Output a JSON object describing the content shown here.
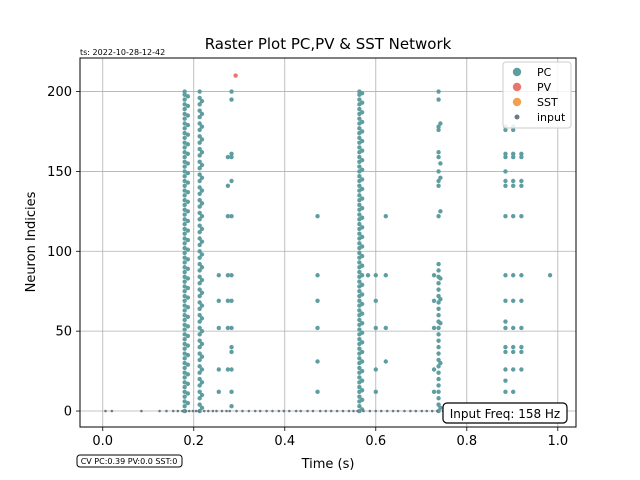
{
  "timestamp": "ts: 2022-10-28-12-42",
  "cv_text": "CV PC:0.39 PV:0.0 SST:0",
  "freq_text": "Input Freq: 158 Hz",
  "chart_data": {
    "type": "scatter",
    "title": "Raster Plot PC,PV & SST Network",
    "xlabel": "Time (s)",
    "ylabel": "Neuron Indicies",
    "xlim": [
      -0.05,
      1.04
    ],
    "ylim": [
      -10,
      221
    ],
    "xticks": [
      0.0,
      0.2,
      0.4,
      0.6,
      0.8,
      1.0
    ],
    "xtick_labels": [
      "0.0",
      "0.2",
      "0.4",
      "0.6",
      "0.8",
      "1.0"
    ],
    "yticks": [
      0,
      50,
      100,
      150,
      200
    ],
    "ytick_labels": [
      "0",
      "50",
      "100",
      "150",
      "200"
    ],
    "grid": true,
    "legend_position": "top-right",
    "series": [
      {
        "name": "PC",
        "color": "#5f9ea0",
        "marker_size": "medium",
        "columns": [
          {
            "x": 0.18,
            "y": [
              0,
              3,
              6,
              9,
              12,
              15,
              18,
              21,
              24,
              27,
              30,
              33,
              36,
              39,
              42,
              45,
              48,
              51,
              54,
              57,
              60,
              63,
              66,
              69,
              72,
              75,
              78,
              81,
              84,
              87,
              90,
              93,
              96,
              99,
              102,
              105,
              108,
              111,
              114,
              117,
              120,
              123,
              126,
              129,
              132,
              135,
              138,
              141,
              144,
              147,
              150,
              153,
              156,
              159,
              162,
              165,
              168,
              171,
              174,
              177,
              180,
              183,
              186,
              189,
              192,
              195,
              198,
              200
            ]
          },
          {
            "x": 0.187,
            "y": [
              5,
              11,
              17,
              23,
              29,
              35,
              41,
              47,
              53,
              59,
              65,
              71,
              77,
              83,
              89,
              95,
              101,
              107,
              113,
              119,
              125,
              131,
              137,
              143,
              149,
              155,
              161,
              167,
              173,
              179,
              185,
              191,
              197
            ]
          },
          {
            "x": 0.213,
            "y": [
              0,
              4,
              8,
              12,
              16,
              20,
              24,
              28,
              32,
              36,
              40,
              44,
              48,
              52,
              56,
              60,
              64,
              68,
              72,
              76,
              80,
              84,
              88,
              92,
              96,
              100,
              104,
              108,
              112,
              116,
              120,
              124,
              128,
              132,
              136,
              140,
              144,
              148,
              152,
              156,
              160,
              164,
              168,
              172,
              176,
              180,
              184,
              188,
              192,
              196,
              200
            ]
          },
          {
            "x": 0.218,
            "y": [
              2,
              10,
              18,
              26,
              34,
              42,
              50,
              58,
              66,
              74,
              82,
              90,
              98,
              106,
              114,
              122,
              130,
              138,
              146,
              154,
              162,
              170,
              178,
              186,
              194
            ]
          },
          {
            "x": 0.255,
            "y": [
              12,
              26,
              52,
              69,
              85
            ]
          },
          {
            "x": 0.275,
            "y": [
              26,
              52,
              69,
              85,
              122,
              141,
              159
            ]
          },
          {
            "x": 0.283,
            "y": [
              3,
              12,
              26,
              37,
              40,
              52,
              69,
              85,
              122,
              144,
              159,
              161,
              195,
              200
            ]
          },
          {
            "x": 0.472,
            "y": [
              12,
              31,
              52,
              69,
              85,
              122
            ]
          },
          {
            "x": 0.564,
            "y": [
              0,
              3,
              6,
              9,
              12,
              15,
              18,
              21,
              24,
              27,
              30,
              33,
              36,
              39,
              42,
              45,
              48,
              51,
              54,
              57,
              60,
              63,
              66,
              69,
              72,
              75,
              78,
              81,
              84,
              87,
              90,
              93,
              96,
              99,
              102,
              105,
              108,
              111,
              114,
              117,
              120,
              123,
              126,
              129,
              132,
              135,
              138,
              141,
              144,
              147,
              150,
              153,
              156,
              159,
              162,
              165,
              168,
              171,
              174,
              177,
              180,
              183,
              186,
              189,
              192,
              195,
              198,
              200
            ]
          },
          {
            "x": 0.57,
            "y": [
              1,
              7,
              13,
              19,
              25,
              31,
              37,
              43,
              49,
              55,
              61,
              67,
              73,
              79,
              85,
              91,
              97,
              103,
              109,
              115,
              121,
              127,
              133,
              139,
              145,
              151,
              157,
              163,
              169,
              175,
              181,
              187,
              193,
              199
            ]
          },
          {
            "x": 0.583,
            "y": [
              85
            ]
          },
          {
            "x": 0.6,
            "y": [
              12,
              26,
              52,
              69,
              85
            ]
          },
          {
            "x": 0.622,
            "y": [
              31,
              52,
              85,
              122
            ]
          },
          {
            "x": 0.728,
            "y": [
              12,
              26,
              52,
              69,
              85
            ]
          },
          {
            "x": 0.738,
            "y": [
              0,
              4,
              8,
              12,
              16,
              20,
              24,
              28,
              32,
              36,
              40,
              44,
              48,
              52,
              56,
              60,
              64,
              68,
              72,
              76,
              80,
              84,
              88,
              92,
              122,
              141,
              144,
              150,
              159,
              162,
              176,
              178,
              195,
              200
            ]
          },
          {
            "x": 0.742,
            "y": [
              2,
              30,
              55,
              70,
              83,
              125,
              146,
              155,
              180
            ]
          },
          {
            "x": 0.885,
            "y": [
              3,
              12,
              19,
              26,
              37,
              40,
              52,
              56,
              69,
              85,
              122,
              141,
              144,
              150,
              159,
              161,
              176,
              178
            ]
          },
          {
            "x": 0.902,
            "y": [
              12,
              26,
              37,
              40,
              52,
              69,
              85,
              122,
              141,
              144,
              159,
              161,
              176,
              178
            ]
          },
          {
            "x": 0.92,
            "y": [
              26,
              37,
              40,
              52,
              69,
              85,
              122,
              141,
              144,
              159,
              161
            ]
          },
          {
            "x": 0.983,
            "y": [
              85
            ]
          }
        ]
      },
      {
        "name": "PV",
        "color": "#e8766d",
        "marker_size": "medium",
        "points": [
          [
            0.292,
            210
          ]
        ]
      },
      {
        "name": "SST",
        "color": "#f0a050",
        "marker_size": "medium",
        "points": []
      },
      {
        "name": "input",
        "color": "#6b7a8a",
        "marker_size": "small",
        "y": 0,
        "x": [
          0.006,
          0.02,
          0.085,
          0.125,
          0.14,
          0.155,
          0.165,
          0.175,
          0.183,
          0.19,
          0.198,
          0.205,
          0.211,
          0.223,
          0.232,
          0.242,
          0.25,
          0.262,
          0.272,
          0.279,
          0.294,
          0.307,
          0.321,
          0.335,
          0.346,
          0.36,
          0.373,
          0.387,
          0.398,
          0.41,
          0.425,
          0.435,
          0.45,
          0.462,
          0.478,
          0.49,
          0.502,
          0.515,
          0.528,
          0.541,
          0.551,
          0.56,
          0.573,
          0.587,
          0.6,
          0.612,
          0.625,
          0.638,
          0.649,
          0.663,
          0.676,
          0.688,
          0.701,
          0.712,
          0.724,
          0.735,
          0.748,
          0.76,
          0.775,
          0.79,
          0.805,
          0.82,
          0.835,
          0.85,
          0.866,
          0.88,
          0.895,
          0.91,
          0.925,
          0.94,
          0.955,
          0.97,
          0.985
        ]
      }
    ]
  }
}
